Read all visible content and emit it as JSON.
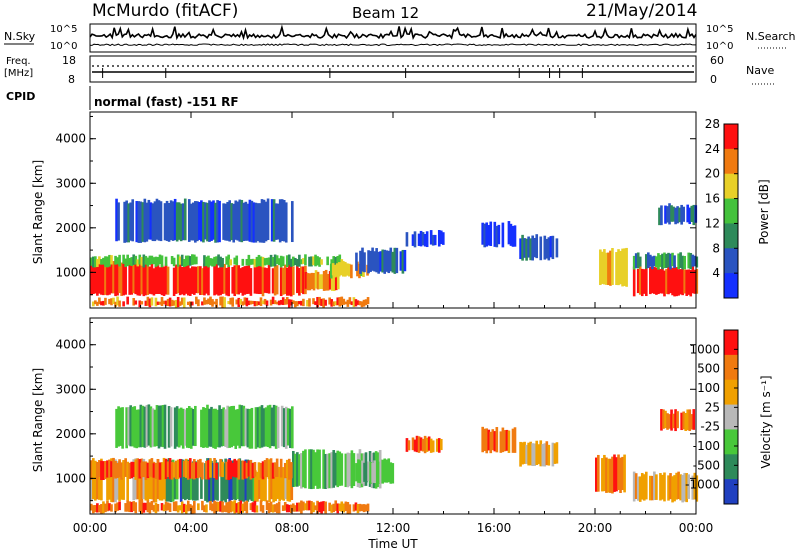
{
  "header": {
    "station": "McMurdo (fitACF)",
    "beam": "Beam 12",
    "date": "21/May/2014"
  },
  "summary_panels": {
    "nsky_label": "N.Sky",
    "nsky_ticks": [
      "10^5",
      "10^0"
    ],
    "nsearch_label": "N.Search",
    "nsearch_ticks": [
      "10^5",
      "10^0"
    ],
    "freq_label": "Freq.",
    "freq_unit": "[MHz]",
    "freq_ticks": [
      "18",
      "8"
    ],
    "nave_label": "Nave",
    "nave_ticks": [
      "60",
      "0"
    ],
    "cpid_label": "CPID",
    "cpid_text": "normal (fast) -151 RF"
  },
  "chart_data": [
    {
      "type": "heatmap",
      "name": "power",
      "ylabel": "Slant Range [km]",
      "yticks": [
        "1000",
        "2000",
        "3000",
        "4000"
      ],
      "ylim": [
        200,
        4600
      ],
      "xlim_hours": [
        0,
        24
      ],
      "colorbar_label": "Power [dB]",
      "colorbar_ticks": [
        "4",
        "8",
        "12",
        "16",
        "20",
        "24",
        "28"
      ],
      "colorbar_colors": [
        "#1430ff",
        "#2a54c0",
        "#2e8a5a",
        "#44c23c",
        "#e8d028",
        "#f07a10",
        "#ff1010"
      ],
      "regions": [
        {
          "t0": 0.0,
          "t1": 2.0,
          "r0": 500,
          "r1": 1250,
          "level": 6
        },
        {
          "t0": 2.0,
          "t1": 8.5,
          "r0": 500,
          "r1": 1150,
          "level": 6
        },
        {
          "t0": 8.5,
          "t1": 10.0,
          "r0": 600,
          "r1": 1000,
          "level": 5
        },
        {
          "t0": 0.0,
          "t1": 10.0,
          "r0": 1150,
          "r1": 1350,
          "level": 3
        },
        {
          "t0": 9.5,
          "t1": 11.0,
          "r0": 900,
          "r1": 1200,
          "level": 4
        },
        {
          "t0": 10.5,
          "t1": 12.5,
          "r0": 1000,
          "r1": 1500,
          "level": 1
        },
        {
          "t0": 12.5,
          "t1": 14.0,
          "r0": 1600,
          "r1": 1900,
          "level": 0
        },
        {
          "t0": 15.5,
          "t1": 16.8,
          "r0": 1600,
          "r1": 2100,
          "level": 0
        },
        {
          "t0": 17.0,
          "t1": 18.5,
          "r0": 1300,
          "r1": 1800,
          "level": 1
        },
        {
          "t0": 20.0,
          "t1": 21.2,
          "r0": 700,
          "r1": 1500,
          "level": 4
        },
        {
          "t0": 21.5,
          "t1": 24.0,
          "r0": 500,
          "r1": 1100,
          "level": 6
        },
        {
          "t0": 21.5,
          "t1": 24.0,
          "r0": 1100,
          "r1": 1400,
          "level": 2
        },
        {
          "t0": 22.5,
          "t1": 24.0,
          "r0": 2100,
          "r1": 2500,
          "level": 1
        },
        {
          "t0": 1.0,
          "t1": 8.0,
          "r0": 1700,
          "r1": 2600,
          "level": 1
        },
        {
          "t0": 0.0,
          "t1": 11.0,
          "r0": 250,
          "r1": 400,
          "level": 5
        }
      ]
    },
    {
      "type": "heatmap",
      "name": "velocity",
      "ylabel": "Slant Range [km]",
      "yticks": [
        "1000",
        "2000",
        "3000",
        "4000"
      ],
      "ylim": [
        200,
        4600
      ],
      "xlim_hours": [
        0,
        24
      ],
      "xlabel": "Time UT",
      "xticks": [
        "00:00",
        "04:00",
        "08:00",
        "12:00",
        "16:00",
        "20:00",
        "00:00"
      ],
      "colorbar_label": "Velocity [m s⁻¹]",
      "colorbar_ticks": [
        "1000",
        "500",
        "100",
        "25",
        "-25",
        "-100",
        "-500",
        "-1000"
      ],
      "colorbar_colors": [
        "#2040c0",
        "#2e8a5a",
        "#48c83a",
        "#b8b8b8",
        "#f0a000",
        "#f07a10",
        "#ff1010"
      ],
      "regions": [
        {
          "t0": 0.0,
          "t1": 3.0,
          "r0": 500,
          "r1": 1400,
          "level": 4
        },
        {
          "t0": 3.0,
          "t1": 6.5,
          "r0": 500,
          "r1": 1400,
          "level": 1
        },
        {
          "t0": 6.5,
          "t1": 8.0,
          "r0": 500,
          "r1": 1200,
          "level": 4
        },
        {
          "t0": 8.0,
          "t1": 11.5,
          "r0": 800,
          "r1": 1600,
          "level": 2
        },
        {
          "t0": 0.0,
          "t1": 8.0,
          "r0": 1000,
          "r1": 1400,
          "level": 5
        },
        {
          "t0": 10.5,
          "t1": 12.0,
          "r0": 900,
          "r1": 1400,
          "level": 2
        },
        {
          "t0": 12.5,
          "t1": 14.0,
          "r0": 1600,
          "r1": 1900,
          "level": 5
        },
        {
          "t0": 15.5,
          "t1": 16.8,
          "r0": 1600,
          "r1": 2100,
          "level": 5
        },
        {
          "t0": 17.0,
          "t1": 18.5,
          "r0": 1300,
          "r1": 1800,
          "level": 4
        },
        {
          "t0": 20.0,
          "t1": 21.2,
          "r0": 700,
          "r1": 1500,
          "level": 5
        },
        {
          "t0": 21.5,
          "t1": 24.0,
          "r0": 500,
          "r1": 1100,
          "level": 4
        },
        {
          "t0": 22.5,
          "t1": 24.0,
          "r0": 2100,
          "r1": 2500,
          "level": 5
        },
        {
          "t0": 1.0,
          "t1": 8.0,
          "r0": 1700,
          "r1": 2600,
          "level": 2
        },
        {
          "t0": 0.0,
          "t1": 11.0,
          "r0": 250,
          "r1": 450,
          "level": 5
        }
      ]
    }
  ]
}
